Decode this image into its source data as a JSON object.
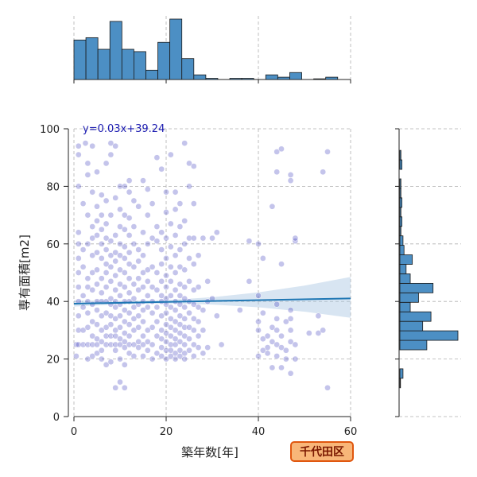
{
  "chart_data": {
    "type": "scatter",
    "title": "",
    "xlabel": "築年数[年]",
    "ylabel": "専有面積[m2]",
    "xlim": [
      0,
      60
    ],
    "ylim": [
      0,
      100
    ],
    "x_ticks": [
      "0",
      "20",
      "40",
      "60"
    ],
    "y_ticks": [
      "0",
      "20",
      "40",
      "60",
      "80",
      "100"
    ],
    "grid": "dashed",
    "regression": {
      "label": "y=0.03x+39.24",
      "slope": 0.03,
      "intercept": 39.24,
      "ci_upper_at_60": 48,
      "ci_lower_at_60": 35
    },
    "badge": "千代田区",
    "colors": {
      "points": "#2b2bb8",
      "line": "#1f77b4",
      "hist": "#4c8fc4",
      "badge_fill": "#f8b679",
      "badge_stroke": "#e0570f"
    },
    "x_histogram": {
      "bin_width": 2.6,
      "start": 0,
      "counts": [
        17,
        18,
        13,
        25,
        13,
        12,
        4,
        16,
        26,
        9,
        2,
        0.5,
        0,
        0.5,
        0.5,
        0,
        2,
        1,
        3,
        0,
        0.3,
        1
      ]
    },
    "y_histogram": {
      "bin_width": 3.3,
      "start": 10,
      "counts": [
        0.3,
        1.5,
        0,
        0,
        13,
        28,
        11,
        15,
        5,
        9,
        16,
        5,
        3,
        6,
        2,
        1.5,
        0.5,
        1,
        0.5,
        1,
        0.5,
        0.5,
        0,
        1,
        0.5,
        0
      ]
    },
    "points": [
      [
        0.5,
        25
      ],
      [
        1,
        25
      ],
      [
        1,
        30
      ],
      [
        1,
        35
      ],
      [
        1,
        40
      ],
      [
        1,
        45
      ],
      [
        1,
        50
      ],
      [
        1,
        55
      ],
      [
        1,
        60
      ],
      [
        1,
        64
      ],
      [
        1,
        80
      ],
      [
        1,
        91
      ],
      [
        1,
        94
      ],
      [
        0.5,
        21
      ],
      [
        2,
        25
      ],
      [
        2,
        30
      ],
      [
        2,
        38
      ],
      [
        2,
        42
      ],
      [
        2,
        52
      ],
      [
        2,
        58
      ],
      [
        2,
        74
      ],
      [
        2.5,
        95
      ],
      [
        3,
        20
      ],
      [
        3,
        25
      ],
      [
        3,
        31
      ],
      [
        3,
        36
      ],
      [
        3,
        40
      ],
      [
        3,
        45
      ],
      [
        3,
        48
      ],
      [
        3,
        60
      ],
      [
        3,
        70
      ],
      [
        3,
        84
      ],
      [
        3,
        88
      ],
      [
        4,
        21
      ],
      [
        4,
        25
      ],
      [
        4,
        28
      ],
      [
        4,
        33
      ],
      [
        4,
        39
      ],
      [
        4,
        44
      ],
      [
        4,
        50
      ],
      [
        4,
        56
      ],
      [
        4,
        62
      ],
      [
        4,
        66
      ],
      [
        4,
        78
      ],
      [
        4,
        94
      ],
      [
        5,
        22
      ],
      [
        5,
        25
      ],
      [
        5,
        27
      ],
      [
        5,
        32
      ],
      [
        5,
        37
      ],
      [
        5,
        40
      ],
      [
        5,
        46
      ],
      [
        5,
        51
      ],
      [
        5,
        57
      ],
      [
        5,
        63
      ],
      [
        5,
        68
      ],
      [
        5,
        73
      ],
      [
        5,
        85
      ],
      [
        6,
        20
      ],
      [
        6,
        23
      ],
      [
        6,
        26
      ],
      [
        6,
        30
      ],
      [
        6,
        35
      ],
      [
        6,
        40
      ],
      [
        6,
        43
      ],
      [
        6,
        48
      ],
      [
        6,
        55
      ],
      [
        6,
        60
      ],
      [
        6,
        65
      ],
      [
        6,
        70
      ],
      [
        6,
        77
      ],
      [
        7,
        18
      ],
      [
        7,
        25
      ],
      [
        7,
        28
      ],
      [
        7,
        31
      ],
      [
        7,
        36
      ],
      [
        7,
        40
      ],
      [
        7,
        45
      ],
      [
        7,
        50
      ],
      [
        7,
        53
      ],
      [
        7,
        58
      ],
      [
        7,
        62
      ],
      [
        7,
        67
      ],
      [
        7,
        75
      ],
      [
        7,
        88
      ],
      [
        8,
        19
      ],
      [
        8,
        25
      ],
      [
        8,
        28
      ],
      [
        8,
        32
      ],
      [
        8,
        35
      ],
      [
        8,
        39
      ],
      [
        8,
        41
      ],
      [
        8,
        47
      ],
      [
        8,
        52
      ],
      [
        8,
        56
      ],
      [
        8,
        61
      ],
      [
        8,
        70
      ],
      [
        8,
        91
      ],
      [
        8,
        95
      ],
      [
        9,
        10
      ],
      [
        9,
        23
      ],
      [
        9,
        25
      ],
      [
        9,
        28
      ],
      [
        9,
        30
      ],
      [
        9,
        34
      ],
      [
        9,
        38
      ],
      [
        9,
        40
      ],
      [
        9,
        44
      ],
      [
        9,
        49
      ],
      [
        9,
        54
      ],
      [
        9,
        57
      ],
      [
        9,
        63
      ],
      [
        9,
        76
      ],
      [
        9,
        94
      ],
      [
        10,
        12
      ],
      [
        10,
        20
      ],
      [
        10,
        25
      ],
      [
        10,
        27
      ],
      [
        10,
        31
      ],
      [
        10,
        35
      ],
      [
        10,
        39
      ],
      [
        10,
        42
      ],
      [
        10,
        46
      ],
      [
        10,
        51
      ],
      [
        10,
        56
      ],
      [
        10,
        60
      ],
      [
        10,
        66
      ],
      [
        10,
        72
      ],
      [
        10,
        80
      ],
      [
        11,
        10
      ],
      [
        11,
        18
      ],
      [
        11,
        24
      ],
      [
        11,
        26
      ],
      [
        11,
        29
      ],
      [
        11,
        33
      ],
      [
        11,
        37
      ],
      [
        11,
        40
      ],
      [
        11,
        45
      ],
      [
        11,
        50
      ],
      [
        11,
        55
      ],
      [
        11,
        59
      ],
      [
        11,
        65
      ],
      [
        11,
        70
      ],
      [
        11,
        80
      ],
      [
        12,
        22
      ],
      [
        12,
        25
      ],
      [
        12,
        28
      ],
      [
        12,
        32
      ],
      [
        12,
        36
      ],
      [
        12,
        40
      ],
      [
        12,
        43
      ],
      [
        12,
        48
      ],
      [
        12,
        53
      ],
      [
        12,
        57
      ],
      [
        12,
        63
      ],
      [
        12,
        69
      ],
      [
        12,
        78
      ],
      [
        12,
        82
      ],
      [
        13,
        21
      ],
      [
        13,
        25
      ],
      [
        13,
        30
      ],
      [
        13,
        34
      ],
      [
        13,
        38
      ],
      [
        13,
        41
      ],
      [
        13,
        46
      ],
      [
        13,
        52
      ],
      [
        13,
        60
      ],
      [
        13,
        66
      ],
      [
        13,
        75
      ],
      [
        14,
        24
      ],
      [
        14,
        26
      ],
      [
        14,
        31
      ],
      [
        14,
        35
      ],
      [
        14,
        39
      ],
      [
        14,
        44
      ],
      [
        14,
        48
      ],
      [
        14,
        54
      ],
      [
        14,
        58
      ],
      [
        14,
        73
      ],
      [
        15,
        21
      ],
      [
        15,
        25
      ],
      [
        15,
        28
      ],
      [
        15,
        33
      ],
      [
        15,
        37
      ],
      [
        15,
        40
      ],
      [
        15,
        45
      ],
      [
        15,
        50
      ],
      [
        15,
        56
      ],
      [
        15,
        64
      ],
      [
        15,
        82
      ],
      [
        16,
        23
      ],
      [
        16,
        26
      ],
      [
        16,
        30
      ],
      [
        16,
        38
      ],
      [
        16,
        42
      ],
      [
        16,
        47
      ],
      [
        16,
        51
      ],
      [
        16,
        60
      ],
      [
        16,
        70
      ],
      [
        16,
        79
      ],
      [
        17,
        20
      ],
      [
        17,
        25
      ],
      [
        17,
        31
      ],
      [
        17,
        36
      ],
      [
        17,
        40
      ],
      [
        17,
        45
      ],
      [
        17,
        52
      ],
      [
        17,
        62
      ],
      [
        17,
        74
      ],
      [
        18,
        22
      ],
      [
        18,
        28
      ],
      [
        18,
        33
      ],
      [
        18,
        38
      ],
      [
        18,
        44
      ],
      [
        18,
        50
      ],
      [
        18,
        61
      ],
      [
        18,
        66
      ],
      [
        18,
        90
      ],
      [
        19,
        21
      ],
      [
        19,
        24
      ],
      [
        19,
        27
      ],
      [
        19,
        30
      ],
      [
        19,
        35
      ],
      [
        19,
        40
      ],
      [
        19,
        42
      ],
      [
        19,
        47
      ],
      [
        19,
        53
      ],
      [
        19,
        58
      ],
      [
        19,
        64
      ],
      [
        19,
        86
      ],
      [
        20,
        20
      ],
      [
        20,
        23
      ],
      [
        20,
        26
      ],
      [
        20,
        29
      ],
      [
        20,
        32
      ],
      [
        20,
        36
      ],
      [
        20,
        39
      ],
      [
        20,
        41
      ],
      [
        20,
        45
      ],
      [
        20,
        49
      ],
      [
        20,
        55
      ],
      [
        20,
        62
      ],
      [
        20,
        71
      ],
      [
        20,
        78
      ],
      [
        21,
        21
      ],
      [
        21,
        23
      ],
      [
        21,
        25
      ],
      [
        21,
        28
      ],
      [
        21,
        31
      ],
      [
        21,
        34
      ],
      [
        21,
        38
      ],
      [
        21,
        42
      ],
      [
        21,
        47
      ],
      [
        21,
        52
      ],
      [
        21,
        59
      ],
      [
        21,
        67
      ],
      [
        21,
        91
      ],
      [
        22,
        20
      ],
      [
        22,
        22
      ],
      [
        22,
        25
      ],
      [
        22,
        27
      ],
      [
        22,
        30
      ],
      [
        22,
        33
      ],
      [
        22,
        37
      ],
      [
        22,
        40
      ],
      [
        22,
        44
      ],
      [
        22,
        50
      ],
      [
        22,
        56
      ],
      [
        22,
        63
      ],
      [
        22,
        72
      ],
      [
        22,
        78
      ],
      [
        23,
        21
      ],
      [
        23,
        23
      ],
      [
        23,
        26
      ],
      [
        23,
        29
      ],
      [
        23,
        32
      ],
      [
        23,
        35
      ],
      [
        23,
        39
      ],
      [
        23,
        42
      ],
      [
        23,
        46
      ],
      [
        23,
        52
      ],
      [
        23,
        58
      ],
      [
        23,
        66
      ],
      [
        23,
        74
      ],
      [
        24,
        20
      ],
      [
        24,
        22
      ],
      [
        24,
        25
      ],
      [
        24,
        28
      ],
      [
        24,
        31
      ],
      [
        24,
        34
      ],
      [
        24,
        38
      ],
      [
        24,
        41
      ],
      [
        24,
        45
      ],
      [
        24,
        51
      ],
      [
        24,
        60
      ],
      [
        24,
        68
      ],
      [
        24,
        95
      ],
      [
        25,
        23
      ],
      [
        25,
        27
      ],
      [
        25,
        31
      ],
      [
        25,
        36
      ],
      [
        25,
        40
      ],
      [
        25,
        47
      ],
      [
        25,
        55
      ],
      [
        25,
        62
      ],
      [
        25,
        80
      ],
      [
        25,
        88
      ],
      [
        26,
        21
      ],
      [
        26,
        25
      ],
      [
        26,
        30
      ],
      [
        26,
        34
      ],
      [
        26,
        39
      ],
      [
        26,
        44
      ],
      [
        26,
        53
      ],
      [
        26,
        62
      ],
      [
        26,
        74
      ],
      [
        26,
        87
      ],
      [
        27,
        24
      ],
      [
        27,
        28
      ],
      [
        27,
        33
      ],
      [
        27,
        38
      ],
      [
        27,
        45
      ],
      [
        27,
        56
      ],
      [
        28,
        22
      ],
      [
        28,
        30
      ],
      [
        28,
        37
      ],
      [
        28,
        62
      ],
      [
        29,
        24
      ],
      [
        29,
        40
      ],
      [
        29,
        47
      ],
      [
        30,
        62
      ],
      [
        30,
        41
      ],
      [
        31,
        35
      ],
      [
        31,
        64
      ],
      [
        32,
        25
      ],
      [
        36,
        37
      ],
      [
        38,
        47
      ],
      [
        38,
        61
      ],
      [
        40,
        21
      ],
      [
        40,
        30
      ],
      [
        40,
        33
      ],
      [
        40,
        42
      ],
      [
        40,
        60
      ],
      [
        41,
        23
      ],
      [
        41,
        27
      ],
      [
        41,
        36
      ],
      [
        41,
        55
      ],
      [
        42,
        22
      ],
      [
        42,
        24
      ],
      [
        42,
        28
      ],
      [
        43,
        26
      ],
      [
        43,
        31
      ],
      [
        43,
        73
      ],
      [
        43,
        17
      ],
      [
        44,
        21
      ],
      [
        44,
        25
      ],
      [
        44,
        30
      ],
      [
        44,
        34
      ],
      [
        44,
        39
      ],
      [
        44,
        92
      ],
      [
        44,
        85
      ],
      [
        45,
        17
      ],
      [
        45,
        24
      ],
      [
        45,
        28
      ],
      [
        45,
        53
      ],
      [
        45,
        93
      ],
      [
        46,
        23
      ],
      [
        46,
        33
      ],
      [
        46,
        20
      ],
      [
        47,
        15
      ],
      [
        47,
        26
      ],
      [
        47,
        30
      ],
      [
        47,
        34
      ],
      [
        47,
        37
      ],
      [
        47,
        82
      ],
      [
        47,
        84
      ],
      [
        48,
        20
      ],
      [
        48,
        25
      ],
      [
        48,
        61
      ],
      [
        48,
        62
      ],
      [
        51,
        29
      ],
      [
        53,
        29
      ],
      [
        53,
        35
      ],
      [
        54,
        30
      ],
      [
        54,
        85
      ],
      [
        55,
        10
      ],
      [
        55,
        92
      ]
    ]
  }
}
